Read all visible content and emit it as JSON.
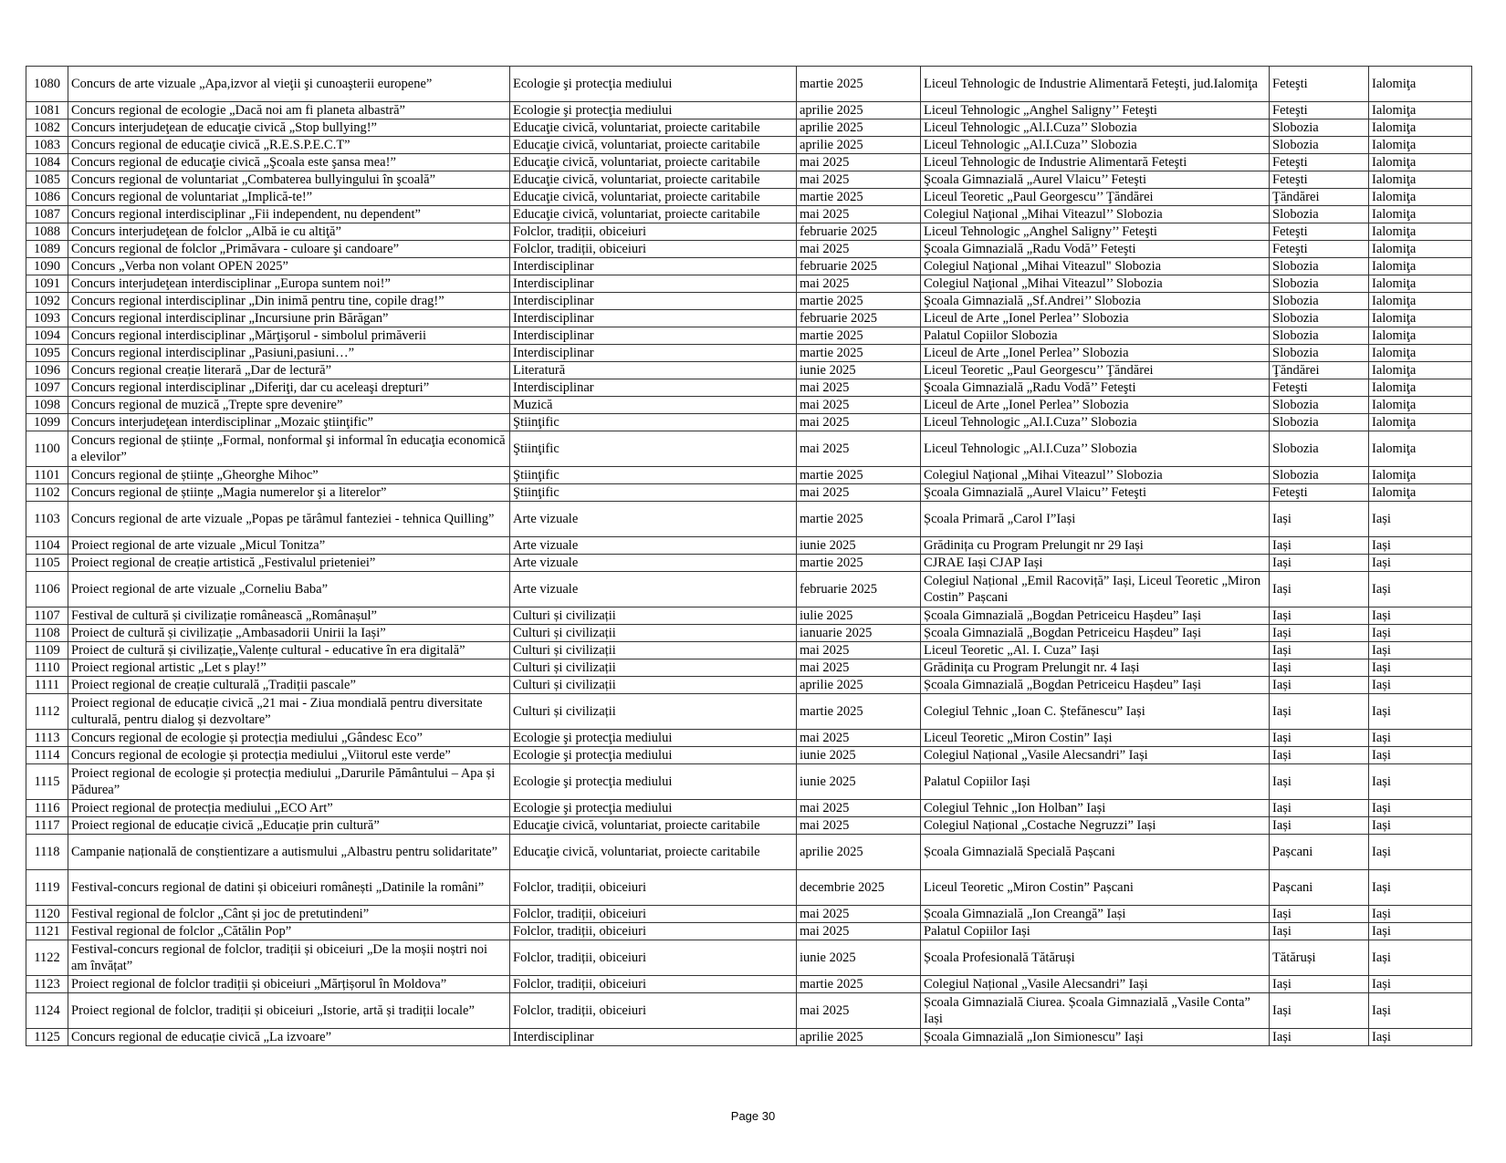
{
  "rows": [
    [
      "1080",
      "Concurs de arte vizuale „Apa,izvor al vieţii şi cunoaşterii europene”",
      "Ecologie şi protecţia mediului",
      "martie 2025",
      "Liceul Tehnologic de Industrie Alimentară Feteşti, jud.Ialomiţa",
      "Feteşti",
      "Ialomiţa"
    ],
    [
      "1081",
      "Concurs regional de ecologie „Dacă noi am fi planeta albastră”",
      "Ecologie şi protecţia mediului",
      "aprilie 2025",
      "Liceul Tehnologic „Anghel Saligny’’ Feteşti",
      "Feteşti",
      "Ialomiţa"
    ],
    [
      "1082",
      "Concurs interjudeţean de educaţie civică „Stop bullying!”",
      "Educaţie civică, voluntariat, proiecte caritabile",
      "aprilie 2025",
      "Liceul Tehnologic „Al.I.Cuza’’ Slobozia",
      "Slobozia",
      "Ialomiţa"
    ],
    [
      "1083",
      "Concurs regional de educaţie civică „R.E.S.P.E.C.T”",
      "Educaţie civică, voluntariat, proiecte caritabile",
      "aprilie 2025",
      "Liceul Tehnologic „Al.I.Cuza’’ Slobozia",
      "Slobozia",
      "Ialomiţa"
    ],
    [
      "1084",
      "Concurs regional de educaţie civică „Şcoala este şansa mea!”",
      "Educaţie civică, voluntariat, proiecte caritabile",
      "mai 2025",
      "Liceul Tehnologic de Industrie Alimentară Feteşti",
      "Feteşti",
      "Ialomiţa"
    ],
    [
      "1085",
      "Concurs regional de voluntariat „Combaterea bullyingului în şcoală”",
      "Educaţie civică, voluntariat, proiecte caritabile",
      "mai 2025",
      "Şcoala Gimnazială „Aurel Vlaicu’’ Feteşti",
      "Feteşti",
      "Ialomiţa"
    ],
    [
      "1086",
      "Concurs regional de voluntariat „Implică-te!”",
      "Educaţie civică, voluntariat, proiecte caritabile",
      "martie 2025",
      "Liceul Teoretic „Paul Georgescu’’ Ţăndărei",
      "Ţăndărei",
      "Ialomiţa"
    ],
    [
      "1087",
      "Concurs regional interdisciplinar „Fii independent, nu dependent”",
      "Educaţie civică, voluntariat, proiecte caritabile",
      "mai 2025",
      "Colegiul Naţional „Mihai Viteazul’’ Slobozia",
      "Slobozia",
      "Ialomiţa"
    ],
    [
      "1088",
      "Concurs interjudeţean de folclor „Albă ie cu altiţă”",
      "Folclor, tradiții, obiceiuri",
      "februarie 2025",
      "Liceul Tehnologic „Anghel Saligny’’ Feteşti",
      "Feteşti",
      "Ialomiţa"
    ],
    [
      "1089",
      "Concurs regional de folclor „Primăvara - culoare şi candoare”",
      "Folclor, tradiții, obiceiuri",
      "mai 2025",
      "Şcoala Gimnazială „Radu Vodă’’ Feteşti",
      "Feteşti",
      "Ialomiţa"
    ],
    [
      "1090",
      "Concurs „Verba non volant OPEN 2025”",
      "Interdisciplinar",
      "februarie 2025",
      "Colegiul Naţional „Mihai Viteazul\" Slobozia",
      "Slobozia",
      "Ialomiţa"
    ],
    [
      "1091",
      "Concurs interjudeţean interdisciplinar „Europa suntem noi!”",
      "Interdisciplinar",
      "mai 2025",
      "Colegiul Naţional „Mihai Viteazul’’ Slobozia",
      "Slobozia",
      "Ialomiţa"
    ],
    [
      "1092",
      "Concurs regional interdisciplinar „Din inimă pentru tine, copile drag!”",
      "Interdisciplinar",
      "martie 2025",
      "Şcoala Gimnazială „Sf.Andrei’’ Slobozia",
      "Slobozia",
      "Ialomiţa"
    ],
    [
      "1093",
      "Concurs regional interdisciplinar „Incursiune prin Bărăgan”",
      "Interdisciplinar",
      "februarie 2025",
      "Liceul de Arte „Ionel Perlea’’ Slobozia",
      "Slobozia",
      "Ialomiţa"
    ],
    [
      "1094",
      "Concurs regional interdisciplinar „Mărţişorul - simbolul primăverii",
      "Interdisciplinar",
      "martie 2025",
      "Palatul Copiilor Slobozia",
      "Slobozia",
      "Ialomiţa"
    ],
    [
      "1095",
      "Concurs regional interdisciplinar „Pasiuni,pasiuni…”",
      "Interdisciplinar",
      "martie 2025",
      "Liceul de Arte „Ionel Perlea’’ Slobozia",
      "Slobozia",
      "Ialomiţa"
    ],
    [
      "1096",
      "Concurs regional creație literară „Dar de lectură”",
      "Literatură",
      "iunie 2025",
      "Liceul Teoretic „Paul Georgescu’’ Ţăndărei",
      "Ţăndărei",
      "Ialomiţa"
    ],
    [
      "1097",
      "Concurs regional interdisciplinar „Diferiţi, dar cu aceleaşi drepturi”",
      "Interdisciplinar",
      "mai 2025",
      "Şcoala Gimnazială „Radu Vodă’’ Feteşti",
      "Feteşti",
      "Ialomiţa"
    ],
    [
      "1098",
      "Concurs regional de muzică „Trepte spre devenire”",
      "Muzică",
      "mai 2025",
      "Liceul de Arte „Ionel Perlea’’ Slobozia",
      "Slobozia",
      "Ialomiţa"
    ],
    [
      "1099",
      "Concurs interjudeţean interdisciplinar „Mozaic ştiinţific”",
      "Ştiinţific",
      "mai 2025",
      "Liceul Tehnologic „Al.I.Cuza’’ Slobozia",
      "Slobozia",
      "Ialomiţa"
    ],
    [
      "1100",
      "Concurs regional de științe „Formal, nonformal şi informal în educaţia economică a elevilor”",
      "Ştiinţific",
      "mai 2025",
      "Liceul Tehnologic „Al.I.Cuza’’ Slobozia",
      "Slobozia",
      "Ialomiţa"
    ],
    [
      "1101",
      "Concurs regional de științe „Gheorghe Mihoc”",
      "Ştiinţific",
      "martie 2025",
      "Colegiul Naţional „Mihai Viteazul’’ Slobozia",
      "Slobozia",
      "Ialomiţa"
    ],
    [
      "1102",
      "Concurs regional de științe „Magia numerelor şi a literelor”",
      "Ştiinţific",
      "mai 2025",
      "Şcoala Gimnazială „Aurel Vlaicu’’ Feteşti",
      "Feteşti",
      "Ialomiţa"
    ],
    [
      "1103",
      "Concurs regional de arte vizuale „Popas pe tărâmul fanteziei - tehnica Quilling”",
      "Arte vizuale",
      "martie 2025",
      "Școala Primară „Carol I”Iași",
      "Iași",
      "Iași"
    ],
    [
      "1104",
      "Proiect regional de arte vizuale „Micul Tonitza”",
      "Arte vizuale",
      "iunie 2025",
      "Grădinița cu Program Prelungit nr 29 Iași",
      "Iași",
      "Iași"
    ],
    [
      "1105",
      "Proiect regional de creație artistică „Festivalul prieteniei”",
      "Arte vizuale",
      "martie 2025",
      "CJRAE Iași CJAP Iași",
      "Iași",
      "Iași"
    ],
    [
      "1106",
      "Proiect regional de arte vizuale „Corneliu Baba”",
      "Arte vizuale",
      "februarie 2025",
      "Colegiul Național „Emil Racoviță” Iași, Liceul Teoretic „Miron Costin” Pașcani",
      "Iași",
      "Iași"
    ],
    [
      "1107",
      "Festival de cultură și civilizație românească „Românașul”",
      "Culturi și civilizații",
      "iulie 2025",
      "Școala Gimnazială „Bogdan Petriceicu Hașdeu” Iași",
      "Iași",
      "Iași"
    ],
    [
      "1108",
      "Proiect de cultură și civilizație „Ambasadorii Unirii la Iași”",
      "Culturi și civilizații",
      "ianuarie 2025",
      "Școala Gimnazială „Bogdan Petriceicu Hașdeu” Iași",
      "Iași",
      "Iași"
    ],
    [
      "1109",
      "Proiect de cultură și civilizație„Valențe cultural - educative în era digitală”",
      "Culturi și civilizații",
      "mai 2025",
      "Liceul Teoretic „Al. I. Cuza” Iași",
      "Iași",
      "Iași"
    ],
    [
      "1110",
      "Proiect regional artistic „Let s play!”",
      "Culturi și civilizații",
      "mai 2025",
      "Grădinița cu Program Prelungit nr. 4 Iași",
      "Iași",
      "Iași"
    ],
    [
      "1111",
      "Proiect regional de creație culturală „Tradiții pascale”",
      "Culturi și civilizații",
      "aprilie 2025",
      "Școala Gimnazială „Bogdan Petriceicu Hașdeu” Iași",
      "Iași",
      "Iași"
    ],
    [
      "1112",
      "Proiect regional de educație civică „21 mai - Ziua mondială pentru diversitate culturală, pentru dialog și dezvoltare”",
      "Culturi și civilizații",
      "martie 2025",
      "Colegiul Tehnic „Ioan C. Ștefănescu” Iași",
      "Iași",
      "Iași"
    ],
    [
      "1113",
      "Concurs regional de ecologie și protecția mediului „Gândesc Eco”",
      "Ecologie şi protecţia mediului",
      "mai 2025",
      "Liceul Teoretic „Miron Costin” Iași",
      "Iași",
      "Iași"
    ],
    [
      "1114",
      "Concurs regional de ecologie și protecția mediului „Viitorul este verde”",
      "Ecologie şi protecţia mediului",
      "iunie 2025",
      "Colegiul Național „Vasile Alecsandri” Iași",
      "Iași",
      "Iași"
    ],
    [
      "1115",
      "Proiect regional de ecologie și protecția mediului „Darurile Pământului – Apa și Pădurea”",
      "Ecologie şi protecţia mediului",
      "iunie 2025",
      "Palatul Copiilor Iași",
      "Iași",
      "Iași"
    ],
    [
      "1116",
      "Proiect regional de protecția mediului „ECO Art”",
      "Ecologie şi protecţia mediului",
      "mai 2025",
      "Colegiul Tehnic „Ion Holban” Iași",
      "Iași",
      "Iași"
    ],
    [
      "1117",
      "Proiect regional de educație civică „Educație prin cultură”",
      "Educaţie civică, voluntariat, proiecte caritabile",
      "mai 2025",
      "Colegiul Național „Costache Negruzzi” Iași",
      "Iași",
      "Iași"
    ],
    [
      "1118",
      "Campanie națională de conștientizare a autismului „Albastru pentru solidaritate”",
      "Educaţie civică, voluntariat, proiecte caritabile",
      "aprilie 2025",
      "Școala Gimnazială Specială Pașcani",
      "Pașcani",
      "Iași"
    ],
    [
      "1119",
      "Festival-concurs regional de datini și obiceiuri românești „Datinile la români”",
      "Folclor, tradiții, obiceiuri",
      "decembrie 2025",
      "Liceul Teoretic „Miron Costin” Pașcani",
      "Pașcani",
      "Iași"
    ],
    [
      "1120",
      "Festival regional de folclor „Cânt și joc de pretutindeni”",
      "Folclor, tradiții, obiceiuri",
      "mai 2025",
      "Școala Gimnazială „Ion Creangă” Iași",
      "Iași",
      "Iași"
    ],
    [
      "1121",
      "Festival regional de folclor „Cătălin Pop”",
      "Folclor, tradiții, obiceiuri",
      "mai 2025",
      "Palatul Copiilor Iași",
      "Iași",
      "Iași"
    ],
    [
      "1122",
      "Festival-concurs regional de folclor, tradiții și obiceiuri „De la moșii noștri noi am învățat”",
      "Folclor, tradiții, obiceiuri",
      "iunie 2025",
      "Școala Profesională Tătăruși",
      "Tătăruși",
      "Iași"
    ],
    [
      "1123",
      "Proiect regional de folclor tradiții și obiceiuri „Mărțișorul în Moldova”",
      "Folclor, tradiții, obiceiuri",
      "martie 2025",
      "Colegiul Național „Vasile Alecsandri” Iași",
      "Iași",
      "Iași"
    ],
    [
      "1124",
      "Proiect regional de folclor, tradiții și obiceiuri „Istorie, artă și tradiții locale”",
      "Folclor, tradiții, obiceiuri",
      "mai 2025",
      "Școala Gimnazială Ciurea. Școala Gimnazială „Vasile Conta” Iași",
      "Iași",
      "Iași"
    ],
    [
      "1125",
      "Concurs regional de educație civică „La izvoare”",
      "Interdisciplinar",
      "aprilie 2025",
      "Școala Gimnazială „Ion Simionescu” Iași",
      "Iași",
      "Iași"
    ]
  ],
  "footer": {
    "page_label": "Page 30"
  }
}
